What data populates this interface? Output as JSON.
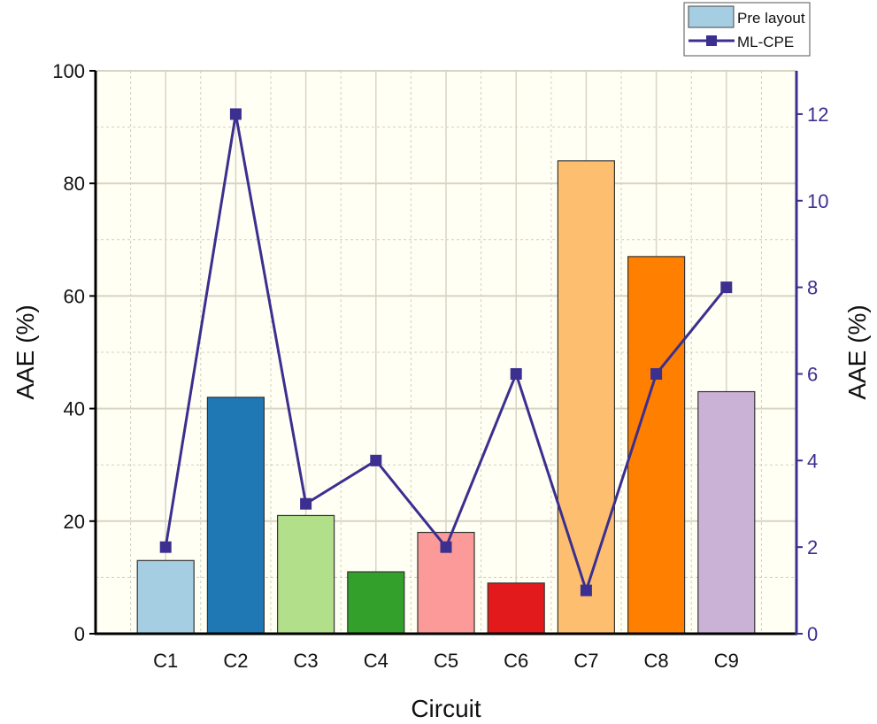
{
  "chart_data": {
    "type": "bar+line",
    "xlabel": "Circuit",
    "ylabel": "AAE (%)",
    "y2label": "AAE (%)",
    "categories": [
      "C1",
      "C2",
      "C3",
      "C4",
      "C5",
      "C6",
      "C7",
      "C8",
      "C9"
    ],
    "ylim": [
      0,
      100
    ],
    "y2lim": [
      0,
      13
    ],
    "yticks": [
      0,
      20,
      40,
      60,
      80,
      100
    ],
    "y2ticks": [
      0,
      2,
      4,
      6,
      8,
      10,
      12
    ],
    "grid": true,
    "legend_position": "top-right",
    "series": [
      {
        "name": "Pre layout",
        "type": "bar",
        "axis": "left",
        "values": [
          13,
          42,
          21,
          11,
          18,
          9,
          84,
          67,
          43
        ],
        "colors": [
          "#a6cee3",
          "#1f78b4",
          "#b2df8a",
          "#33a02c",
          "#fb9a99",
          "#e31a1c",
          "#fdbf6f",
          "#ff7f00",
          "#cab2d6"
        ]
      },
      {
        "name": "ML-CPE",
        "type": "line",
        "axis": "right",
        "values": [
          2,
          12,
          3,
          4,
          2,
          6,
          1,
          6,
          8
        ],
        "color": "#3b2f8f"
      }
    ],
    "background": "#fffff4"
  }
}
